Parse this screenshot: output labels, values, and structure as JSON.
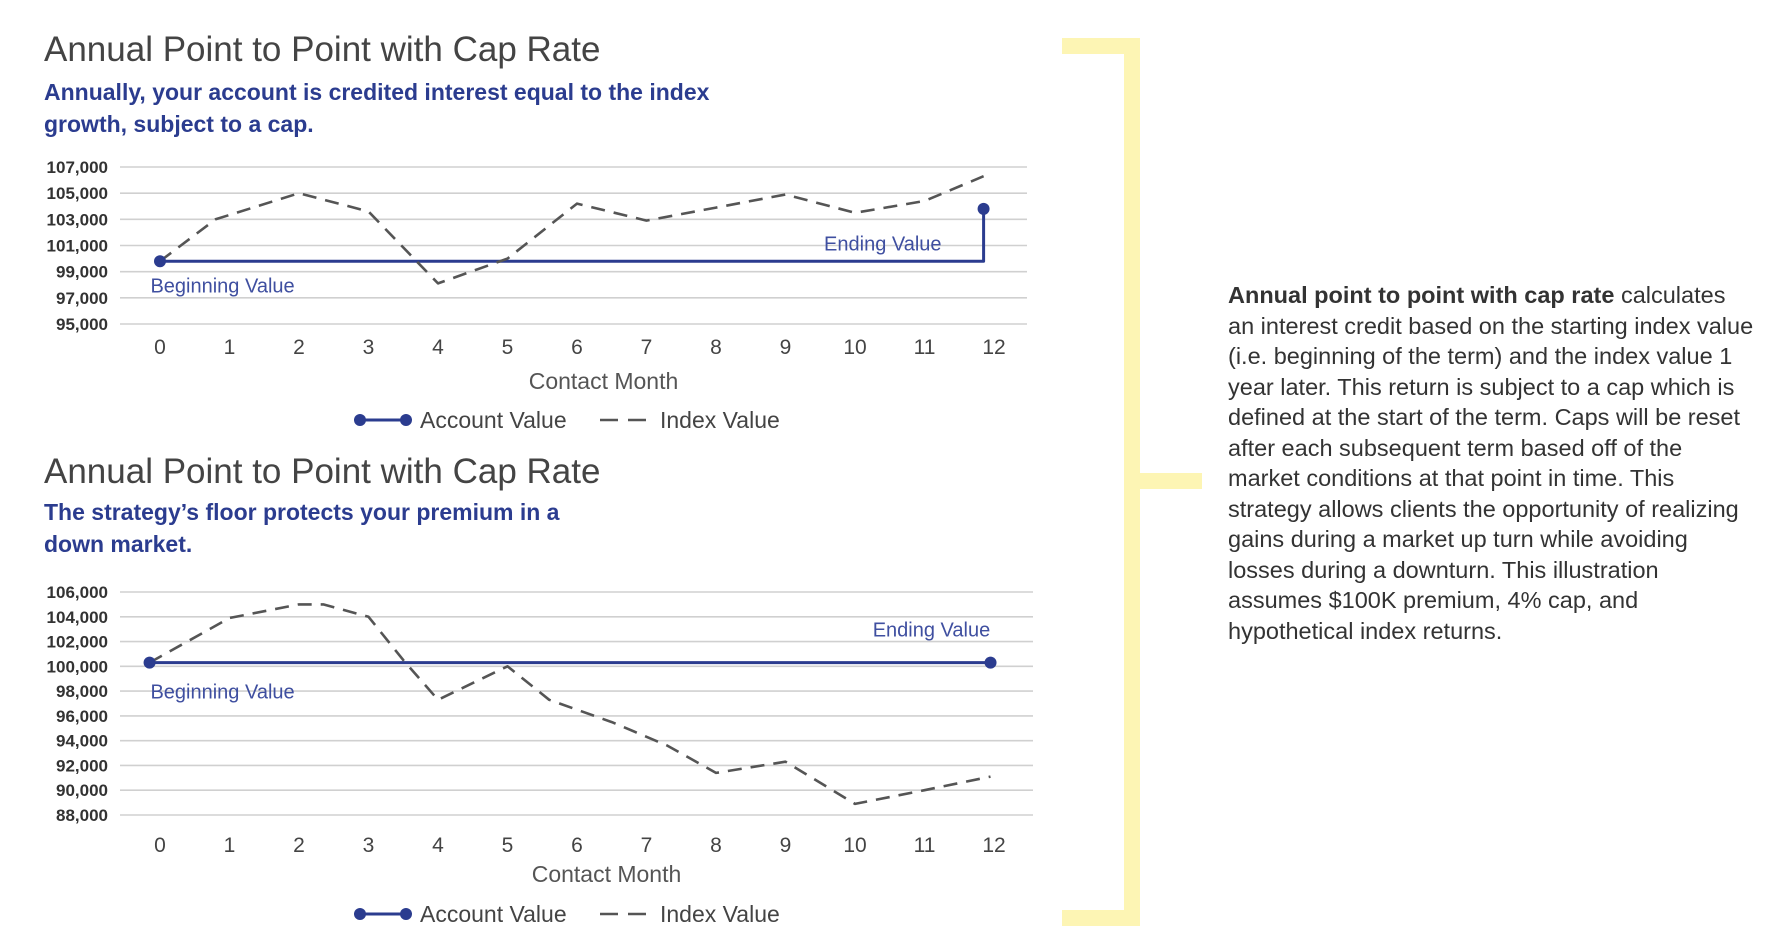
{
  "charts": [
    {
      "title": "Annual Point to Point with Cap Rate",
      "subtitle": "Annually, your account is credited interest equal to the index growth, subject to a cap."
    },
    {
      "title": "Annual Point to Point with Cap Rate",
      "subtitle": "The strategy’s floor protects your premium in a down market."
    }
  ],
  "description": {
    "lead": "Annual point to point with cap rate",
    "body": " calculates an interest credit based on the starting index value (i.e. beginning of the term) and the index value 1 year later. This return is subject to a cap which is defined at the start of the term. Caps will be reset after each subsequent term based off of the market conditions at that point in time. This strategy allows clients the opportunity of realizing gains during a market up turn while avoiding losses during a downturn. This illustration assumes $100K premium, 4% cap, and hypothetical index returns."
  },
  "colors": {
    "account": "#2b3c8f",
    "index": "#555555",
    "grid": "#d0d0d0",
    "bracket": "#fdf5b4"
  },
  "chart_data": [
    {
      "type": "line",
      "title": "Annual Point to Point with Cap Rate",
      "xlabel": "Contact Month",
      "ylabel": "",
      "x": [
        0,
        1,
        2,
        3,
        4,
        5,
        6,
        7,
        8,
        9,
        10,
        11,
        12
      ],
      "ylim": [
        95000,
        107000
      ],
      "yticks": [
        95000,
        97000,
        99000,
        101000,
        103000,
        105000,
        107000
      ],
      "ytick_labels": [
        "95,000",
        "97,000",
        "99,000",
        "101,000",
        "103,000",
        "105,000",
        "107,000"
      ],
      "grid": true,
      "legend_position": "bottom",
      "series": [
        {
          "name": "Account Value",
          "style": "solid",
          "points": [
            [
              0,
              99800
            ],
            [
              11.85,
              99800
            ],
            [
              11.85,
              103800
            ]
          ]
        },
        {
          "name": "Index Value",
          "style": "dashed",
          "points": [
            [
              0,
              99800
            ],
            [
              0.8,
              103000
            ],
            [
              2,
              105000
            ],
            [
              3,
              103600
            ],
            [
              4,
              98100
            ],
            [
              5,
              100000
            ],
            [
              6,
              104200
            ],
            [
              7,
              102900
            ],
            [
              8,
              103900
            ],
            [
              9,
              104900
            ],
            [
              10,
              103500
            ],
            [
              11,
              104400
            ],
            [
              11.85,
              106300
            ]
          ]
        }
      ],
      "annotations": [
        {
          "text": "Beginning Value",
          "x": 0.9,
          "y": 97400
        },
        {
          "text": "Ending Value",
          "x": 10.4,
          "y": 100600
        }
      ],
      "markers": [
        [
          0,
          99800
        ],
        [
          11.85,
          103800
        ]
      ]
    },
    {
      "type": "line",
      "title": "Annual Point to Point with Cap Rate",
      "xlabel": "Contact Month",
      "ylabel": "",
      "x": [
        0,
        1,
        2,
        3,
        4,
        5,
        6,
        7,
        8,
        9,
        10,
        11,
        12
      ],
      "ylim": [
        88000,
        106000
      ],
      "yticks": [
        88000,
        90000,
        92000,
        94000,
        96000,
        98000,
        100000,
        102000,
        104000,
        106000
      ],
      "ytick_labels": [
        "88,000",
        "90,000",
        "92,000",
        "94,000",
        "96,000",
        "98,000",
        "100,000",
        "102,000",
        "104,000",
        "106,000"
      ],
      "grid": true,
      "legend_position": "bottom",
      "series": [
        {
          "name": "Account Value",
          "style": "solid",
          "points": [
            [
              -0.15,
              100300
            ],
            [
              11.95,
              100300
            ]
          ]
        },
        {
          "name": "Index Value",
          "style": "dashed",
          "points": [
            [
              -0.15,
              100300
            ],
            [
              1,
              103900
            ],
            [
              2,
              105000
            ],
            [
              2.35,
              105000
            ],
            [
              3,
              104000
            ],
            [
              3.5,
              100500
            ],
            [
              4,
              97300
            ],
            [
              5,
              100000
            ],
            [
              5.6,
              97300
            ],
            [
              6.5,
              95500
            ],
            [
              7.3,
              93600
            ],
            [
              8,
              91400
            ],
            [
              9,
              92300
            ],
            [
              10,
              88900
            ],
            [
              11,
              90000
            ],
            [
              11.95,
              91100
            ]
          ]
        }
      ],
      "annotations": [
        {
          "text": "Beginning Value",
          "x": 0.9,
          "y": 97400
        },
        {
          "text": "Ending Value",
          "x": 11.1,
          "y": 102400
        }
      ],
      "markers": [
        [
          -0.15,
          100300
        ],
        [
          11.95,
          100300
        ]
      ]
    }
  ]
}
